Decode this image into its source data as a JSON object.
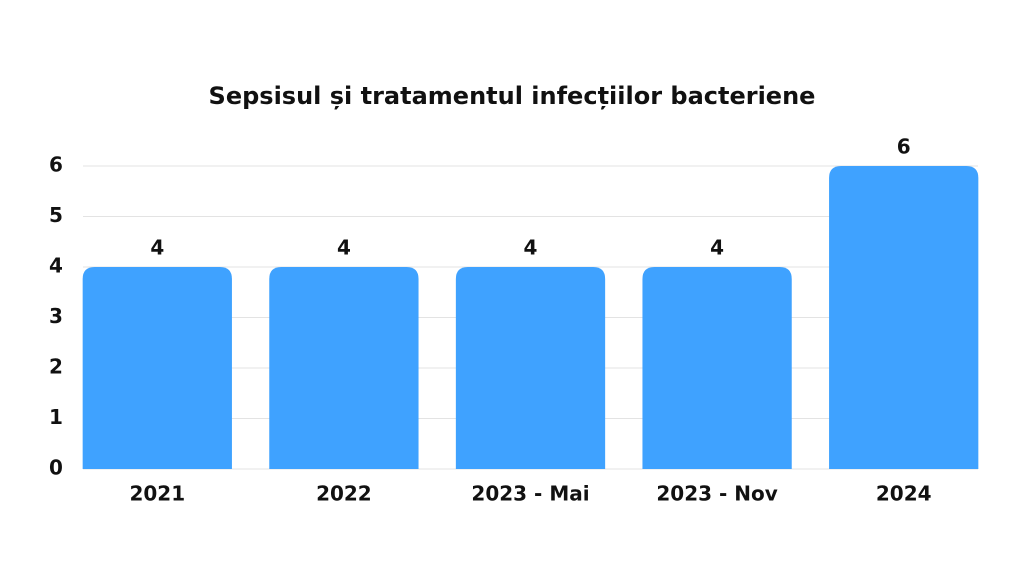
{
  "chart_data": {
    "type": "bar",
    "title": "Sepsisul și tratamentul infecțiilor bacteriene",
    "categories": [
      "2021",
      "2022",
      "2023 - Mai",
      "2023 - Nov",
      "2024"
    ],
    "values": [
      4,
      4,
      4,
      4,
      6
    ],
    "color": "#3fa2ff",
    "ylim": [
      0,
      6
    ],
    "yticks": [
      0,
      1,
      2,
      3,
      4,
      5,
      6
    ],
    "grid": true
  }
}
